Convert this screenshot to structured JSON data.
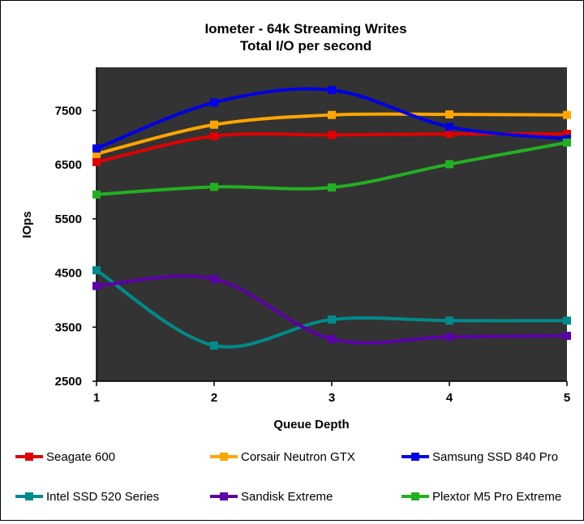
{
  "chart_data": {
    "type": "line",
    "title": "Iometer - 64k Streaming Writes",
    "subtitle": "Total I/O per second",
    "xlabel": "Queue Depth",
    "ylabel": "IOps",
    "x": [
      1,
      2,
      3,
      4,
      5
    ],
    "x_tick_labels": [
      "1",
      "2",
      "3",
      "4",
      "5"
    ],
    "ylim": [
      2500,
      8300
    ],
    "y_ticks": [
      2500,
      3500,
      4500,
      5500,
      6500,
      7500
    ],
    "y_tick_labels": [
      "2500",
      "3500",
      "4500",
      "5500",
      "6500",
      "7500"
    ],
    "plot_background": "#333333",
    "grid": false,
    "legend_position": "bottom",
    "series": [
      {
        "name": "Seagate 600",
        "color": "#e00000",
        "values": [
          6550,
          7030,
          7050,
          7070,
          7070
        ]
      },
      {
        "name": "Corsair Neutron GTX",
        "color": "#ffa500",
        "values": [
          6700,
          7240,
          7420,
          7430,
          7420
        ]
      },
      {
        "name": "Samsung SSD 840 Pro",
        "color": "#0000e6",
        "values": [
          6800,
          7650,
          7880,
          7200,
          6980
        ]
      },
      {
        "name": "Intel SSD 520 Series",
        "color": "#008b8b",
        "values": [
          4550,
          3160,
          3640,
          3620,
          3620
        ]
      },
      {
        "name": "Sandisk Extreme",
        "color": "#5a00a8",
        "values": [
          4260,
          4390,
          3280,
          3320,
          3340
        ]
      },
      {
        "name": "Plextor M5 Pro Extreme",
        "color": "#22b022",
        "values": [
          5950,
          6090,
          6080,
          6510,
          6910
        ]
      }
    ]
  }
}
